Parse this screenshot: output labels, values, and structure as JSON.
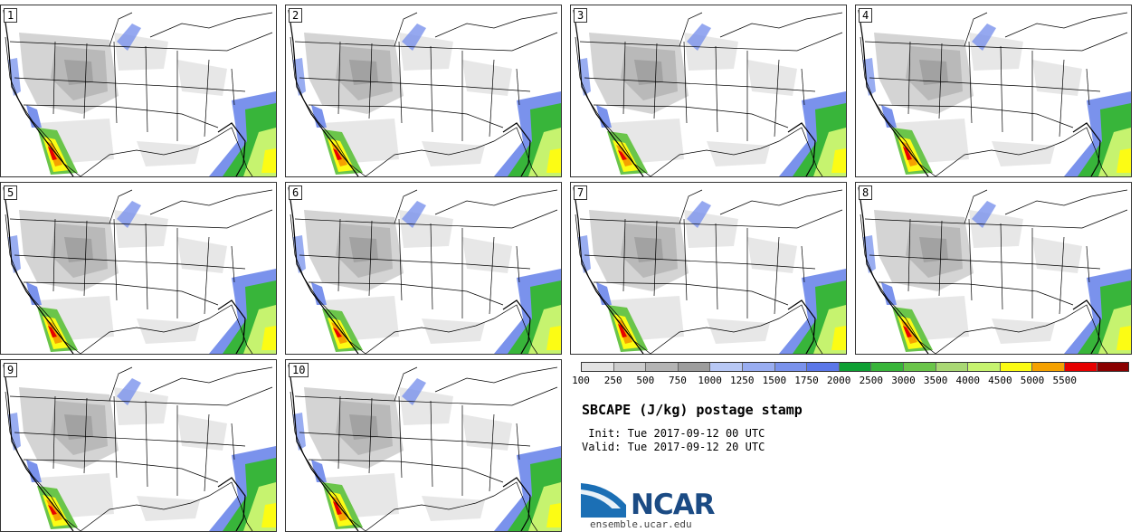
{
  "panels": [
    "1",
    "2",
    "3",
    "4",
    "5",
    "6",
    "7",
    "8",
    "9",
    "10"
  ],
  "colorbar": {
    "colors": [
      "#e3e3e3",
      "#cccccc",
      "#b4b4b4",
      "#9d9d9d",
      "#b8c8f5",
      "#99adf1",
      "#7a92ec",
      "#5b77e8",
      "#0ea033",
      "#38b53a",
      "#6ac54a",
      "#a9d874",
      "#c6f36f",
      "#fcfc14",
      "#f5a100",
      "#e60000",
      "#8a0000"
    ],
    "labels": [
      "100",
      "250",
      "500",
      "750",
      "1000",
      "1250",
      "1500",
      "1750",
      "2000",
      "2500",
      "3000",
      "3500",
      "4000",
      "4500",
      "5000",
      "5500"
    ]
  },
  "title": "SBCAPE (J/kg) postage stamp",
  "init": " Init: Tue 2017-09-12 00 UTC",
  "valid": "Valid: Tue 2017-09-12 20 UTC",
  "logo_text": "NCAR",
  "site": "ensemble.ucar.edu"
}
